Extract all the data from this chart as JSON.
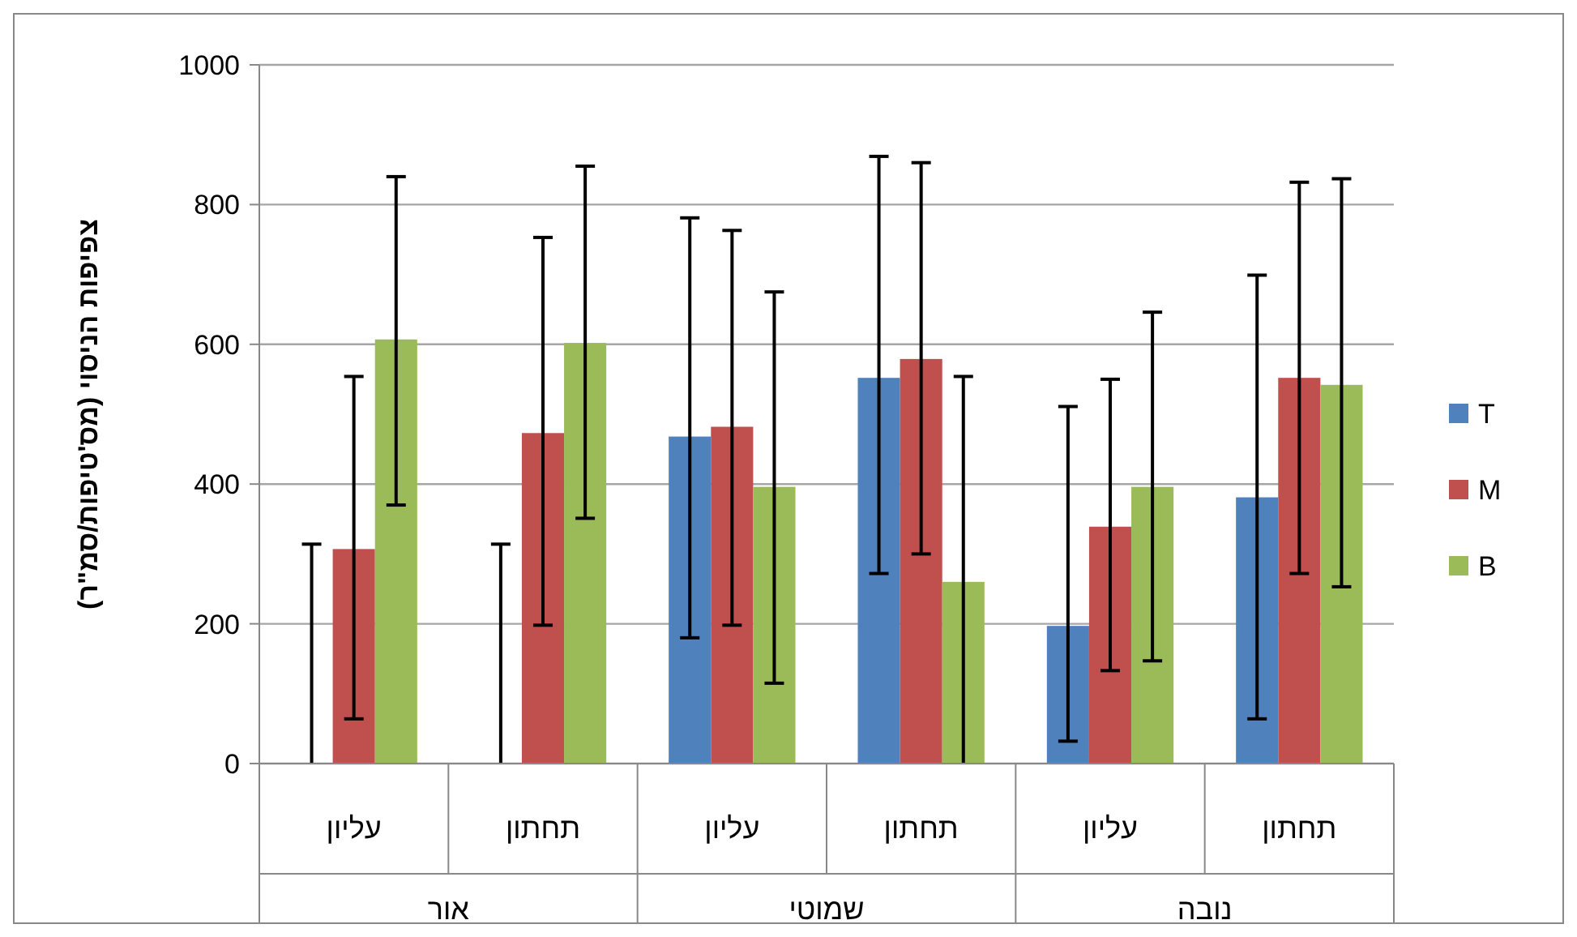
{
  "chart_data": {
    "type": "bar",
    "ylabel": "צפיפות הניסוי (מס'טיפות/סמ\"ר)",
    "categories": [
      "עליון",
      "תחתון",
      "עליון",
      "תחתון",
      "עליון",
      "תחתון"
    ],
    "annotations": [
      "אור",
      "שמוטי",
      "נובה"
    ],
    "ylim": [
      0,
      1000
    ],
    "yticks": [
      0,
      200,
      400,
      600,
      800,
      1000
    ],
    "grid": "y",
    "legend": "right",
    "series": [
      {
        "name": "T",
        "color": "#4f81bd",
        "values": [
          0,
          0,
          468,
          552,
          197,
          381
        ],
        "errors": [
          [
            0,
            314
          ],
          [
            0,
            314
          ],
          [
            180,
            781
          ],
          [
            272,
            869
          ],
          [
            32,
            511
          ],
          [
            64,
            699
          ]
        ]
      },
      {
        "name": "M",
        "color": "#c0504d",
        "values": [
          307,
          473,
          482,
          579,
          339,
          552
        ],
        "errors": [
          [
            64,
            554
          ],
          [
            198,
            753
          ],
          [
            198,
            763
          ],
          [
            300,
            860
          ],
          [
            133,
            550
          ],
          [
            272,
            832
          ]
        ]
      },
      {
        "name": "B",
        "color": "#9bbb59",
        "values": [
          607,
          602,
          396,
          260,
          396,
          542
        ],
        "errors": [
          [
            370,
            840
          ],
          [
            351,
            855
          ],
          [
            115,
            675
          ],
          [
            0,
            554
          ],
          [
            147,
            646
          ],
          [
            253,
            837
          ]
        ]
      }
    ]
  }
}
